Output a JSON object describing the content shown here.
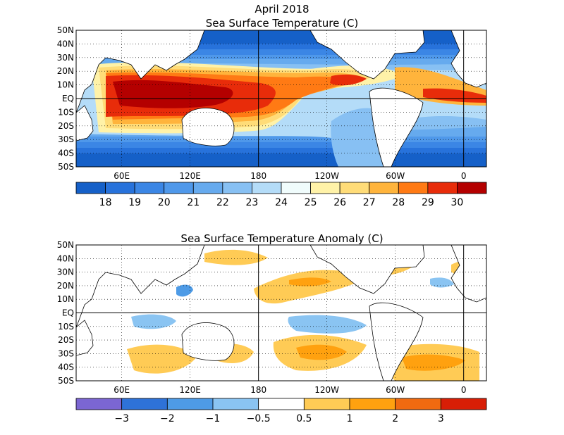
{
  "figure": {
    "title_line1": "April 2018",
    "title_line2": "Sea Surface Temperature (C)",
    "title_anom": "Sea Surface Temperature Anomaly (C)"
  },
  "axes": {
    "lat_labels": [
      "50N",
      "40N",
      "30N",
      "20N",
      "10N",
      "EQ",
      "10S",
      "20S",
      "30S",
      "40S",
      "50S"
    ],
    "lon_labels": [
      "60E",
      "120E",
      "180",
      "120W",
      "60W",
      "0"
    ],
    "lon_range": [
      20,
      380
    ],
    "lat_range": [
      -50,
      50
    ]
  },
  "sst_colorbar": {
    "labels": [
      "18",
      "19",
      "20",
      "21",
      "22",
      "23",
      "24",
      "25",
      "26",
      "27",
      "28",
      "29",
      "30"
    ],
    "colors": [
      "#1560c8",
      "#2772db",
      "#3b86e5",
      "#4f98ea",
      "#66aaee",
      "#87c0f3",
      "#b4dcf8",
      "#f0fcfc",
      "#fff2a8",
      "#ffdc78",
      "#ffb43c",
      "#ff7a14",
      "#e82c0a",
      "#b40000"
    ]
  },
  "anom_colorbar": {
    "labels": [
      "−3",
      "−2",
      "−1",
      "−0.5",
      "0.5",
      "1",
      "2",
      "3"
    ],
    "colors": [
      "#7b66d2",
      "#2e72d8",
      "#4e9be6",
      "#8ac4f2",
      "#ffffff",
      "#ffcb55",
      "#ffa10f",
      "#f06a10",
      "#d81e06"
    ]
  }
}
